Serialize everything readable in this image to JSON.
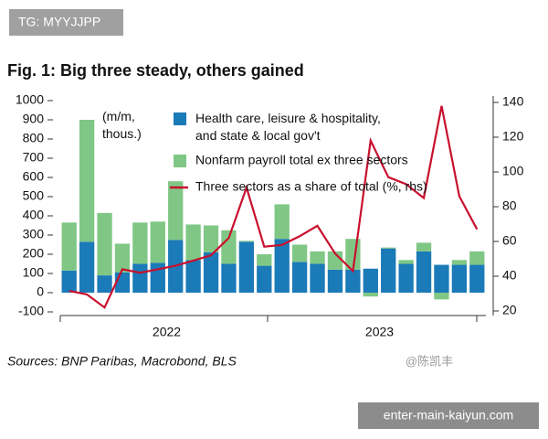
{
  "badge": "TG: MYYJJPP",
  "footer_box": "enter-main-kaiyun.com",
  "watermark": "@陈凯丰",
  "chart_data": {
    "type": "stacked-bar-line",
    "title": "Fig. 1: Big three steady, others gained",
    "annotation": "(m/m, thous.)",
    "source": "Sources: BNP Paribas, Macrobond, BLS",
    "categories": [
      null,
      null,
      null,
      null,
      null,
      null,
      null,
      null,
      null,
      null,
      null,
      null,
      null,
      null,
      null,
      null,
      null,
      null,
      null,
      null,
      null,
      null,
      null,
      null
    ],
    "group_labels": [
      "2022",
      "2023"
    ],
    "ylim": [
      -100,
      1000
    ],
    "yticks": [
      -100,
      0,
      100,
      200,
      300,
      400,
      500,
      600,
      700,
      800,
      900,
      1000
    ],
    "y2lim": [
      20,
      140
    ],
    "y2ticks": [
      20,
      40,
      60,
      80,
      100,
      120,
      140
    ],
    "series": [
      {
        "name": "Health care, leisure & hospitality, and state & local gov't",
        "color": "#1b7ab8",
        "values": [
          115,
          265,
          90,
          105,
          150,
          155,
          275,
          170,
          210,
          150,
          265,
          140,
          280,
          160,
          150,
          120,
          120,
          125,
          230,
          150,
          215,
          145,
          145,
          145
        ]
      },
      {
        "name": "Nonfarm payroll total ex three sectors",
        "color": "#80c785",
        "values": [
          250,
          635,
          325,
          150,
          215,
          215,
          305,
          185,
          140,
          175,
          5,
          60,
          180,
          90,
          65,
          95,
          160,
          -20,
          5,
          20,
          45,
          -35,
          25,
          70
        ]
      },
      {
        "name": "Three sectors as a share of total (%, rhs)",
        "color": "#c8102e",
        "axis": "y2",
        "values": [
          31.5,
          29.5,
          22,
          44,
          42,
          44,
          46,
          49,
          52,
          62,
          91,
          57,
          58,
          63,
          69,
          53,
          43,
          118,
          97,
          93,
          85,
          138,
          86,
          67
        ]
      }
    ]
  }
}
